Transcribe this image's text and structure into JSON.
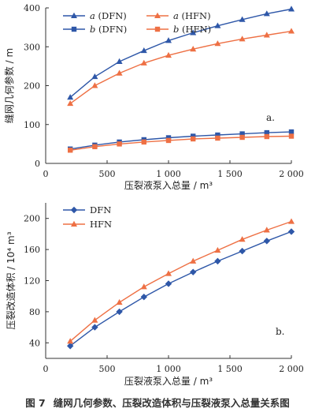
{
  "caption": {
    "number": "图 7",
    "text": "缝网几何参数、压裂改造体积与压裂液泵入总量关系图"
  },
  "colors": {
    "dfn": "#2e57a8",
    "hfn": "#ee7044",
    "axis": "#333333"
  },
  "chart_data": [
    {
      "type": "line",
      "panel_label": "a.",
      "xlabel": "压裂液泵入总量 / m³",
      "ylabel": "缝网几何参数 / m",
      "xlim": [
        0,
        2000
      ],
      "ylim": [
        0,
        400
      ],
      "xticks": [
        0,
        500,
        1000,
        1500,
        2000
      ],
      "xtick_labels": [
        "0",
        "500",
        "1 000",
        "1 500",
        "2 000"
      ],
      "yticks": [
        0,
        100,
        200,
        300,
        400
      ],
      "ytick_labels": [
        "0",
        "100",
        "200",
        "300",
        "400"
      ],
      "legend": "top-left",
      "x": [
        200,
        400,
        600,
        800,
        1000,
        1200,
        1400,
        1600,
        1800,
        2000
      ],
      "series": [
        {
          "name": "a (DFN)",
          "var": "a",
          "suffix": " (DFN)",
          "marker": "triangle",
          "colorKey": "dfn",
          "values": [
            170,
            223,
            262,
            290,
            316,
            336,
            354,
            370,
            385,
            397
          ]
        },
        {
          "name": "a (HFN)",
          "var": "a",
          "suffix": " (HFN)",
          "marker": "triangle",
          "colorKey": "hfn",
          "values": [
            154,
            200,
            232,
            258,
            278,
            294,
            308,
            320,
            330,
            340
          ]
        },
        {
          "name": "b (DFN)",
          "var": "b",
          "suffix": " (DFN)",
          "marker": "square",
          "colorKey": "dfn",
          "values": [
            37,
            47,
            55,
            61,
            66,
            70,
            73,
            76,
            79,
            81
          ]
        },
        {
          "name": "b (HFN)",
          "var": "b",
          "suffix": " (HFN)",
          "marker": "square",
          "colorKey": "hfn",
          "values": [
            34,
            43,
            50,
            55,
            59,
            63,
            65,
            67,
            69,
            70
          ]
        }
      ]
    },
    {
      "type": "line",
      "panel_label": "b.",
      "xlabel": "压裂液泵入总量 / m³",
      "ylabel": "压裂改造体积 / 10⁴ m³",
      "xlim": [
        0,
        2000
      ],
      "ylim": [
        20,
        220
      ],
      "xticks": [
        0,
        500,
        1000,
        1500,
        2000
      ],
      "xtick_labels": [
        "0",
        "500",
        "1 000",
        "1 500",
        "2 000"
      ],
      "yticks": [
        40,
        80,
        120,
        160,
        200
      ],
      "ytick_labels": [
        "40",
        "80",
        "120",
        "160",
        "200"
      ],
      "legend": "top-left",
      "x": [
        200,
        400,
        600,
        800,
        1000,
        1200,
        1400,
        1600,
        1800,
        2000
      ],
      "series": [
        {
          "name": "DFN",
          "marker": "diamond",
          "colorKey": "dfn",
          "values": [
            36,
            60,
            80,
            99,
            116,
            131,
            145,
            158,
            171,
            183
          ]
        },
        {
          "name": "HFN",
          "marker": "triangle",
          "colorKey": "hfn",
          "values": [
            42,
            69,
            92,
            112,
            129,
            145,
            159,
            173,
            185,
            196
          ]
        }
      ]
    }
  ]
}
